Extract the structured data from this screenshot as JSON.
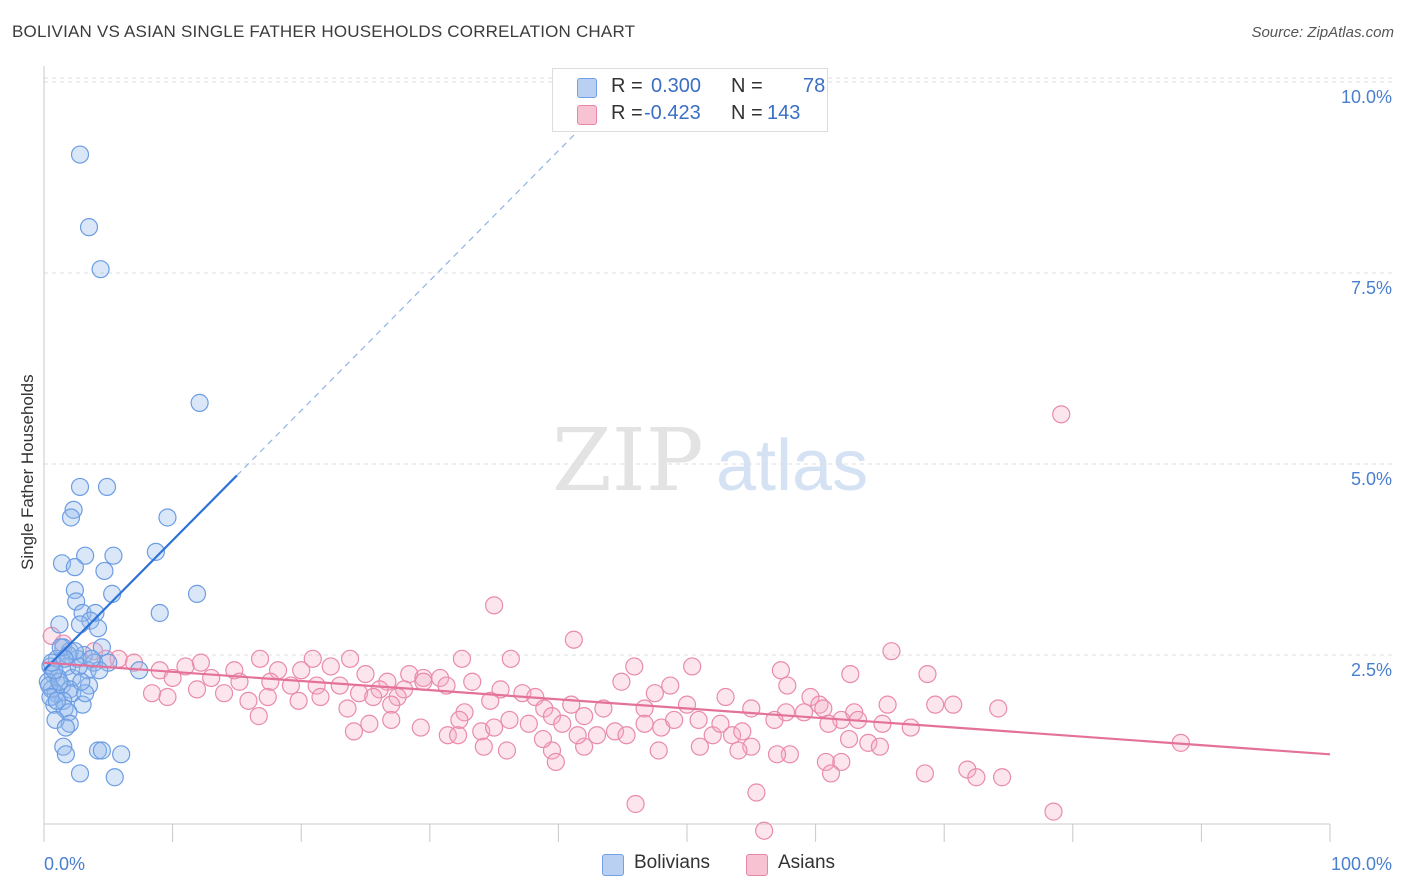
{
  "title": "BOLIVIAN VS ASIAN SINGLE FATHER HOUSEHOLDS CORRELATION CHART",
  "source": "Source: ZipAtlas.com",
  "watermark": {
    "zip": "ZIP",
    "atlas": "atlas"
  },
  "legend": {
    "r_label": "R =",
    "n_label": "N =",
    "items": [
      {
        "name": "Bolivians",
        "r": "0.300",
        "n": "78",
        "color": "#6fa0e8",
        "fill": "#b9d0f2"
      },
      {
        "name": "Asians",
        "r": "-0.423",
        "n": "143",
        "color": "#e886a6",
        "fill": "#f7c3d3"
      }
    ]
  },
  "chart_data": {
    "type": "scatter",
    "title": "BOLIVIAN VS ASIAN SINGLE FATHER HOUSEHOLDS CORRELATION CHART",
    "xlabel": "",
    "ylabel": "Single Father Households",
    "xlim": [
      0,
      100
    ],
    "ylim": [
      0,
      10.5
    ],
    "x_tick_labels": [
      "0.0%",
      "100.0%"
    ],
    "y_ticks": [
      2.5,
      5.0,
      7.5,
      10.0
    ],
    "y_tick_labels": [
      "2.5%",
      "5.0%",
      "7.5%",
      "10.0%"
    ],
    "grid": true,
    "legend_position": "top-center",
    "series": [
      {
        "name": "Bolivians",
        "color": "#4a86d8",
        "trend": {
          "x0": 0.0,
          "y0": 2.3,
          "x1": 15.0,
          "y1": 4.85,
          "dashed_to_x": 42.0
        },
        "points": [
          [
            2.8,
            9.05
          ],
          [
            3.5,
            8.1
          ],
          [
            4.4,
            7.55
          ],
          [
            12.1,
            5.8
          ],
          [
            2.8,
            4.7
          ],
          [
            4.9,
            4.7
          ],
          [
            2.3,
            4.4
          ],
          [
            2.1,
            4.3
          ],
          [
            9.6,
            4.3
          ],
          [
            8.7,
            3.85
          ],
          [
            1.4,
            3.7
          ],
          [
            3.2,
            3.8
          ],
          [
            5.4,
            3.8
          ],
          [
            2.4,
            3.65
          ],
          [
            4.7,
            3.6
          ],
          [
            2.4,
            3.35
          ],
          [
            5.3,
            3.3
          ],
          [
            11.9,
            3.3
          ],
          [
            2.5,
            3.2
          ],
          [
            9.0,
            3.05
          ],
          [
            3.0,
            3.05
          ],
          [
            4.0,
            3.05
          ],
          [
            3.6,
            2.95
          ],
          [
            2.8,
            2.9
          ],
          [
            4.2,
            2.85
          ],
          [
            1.2,
            2.9
          ],
          [
            4.5,
            2.6
          ],
          [
            1.5,
            2.6
          ],
          [
            2.0,
            2.55
          ],
          [
            3.1,
            2.5
          ],
          [
            1.0,
            2.45
          ],
          [
            2.6,
            2.45
          ],
          [
            3.9,
            2.4
          ],
          [
            5.0,
            2.4
          ],
          [
            0.5,
            2.35
          ],
          [
            1.8,
            2.35
          ],
          [
            3.4,
            2.3
          ],
          [
            4.3,
            2.3
          ],
          [
            7.4,
            2.3
          ],
          [
            0.7,
            2.25
          ],
          [
            1.1,
            2.2
          ],
          [
            2.2,
            2.2
          ],
          [
            0.3,
            2.15
          ],
          [
            1.4,
            2.1
          ],
          [
            0.6,
            2.05
          ],
          [
            2.0,
            2.05
          ],
          [
            3.5,
            2.1
          ],
          [
            0.9,
            2.0
          ],
          [
            2.2,
            2.0
          ],
          [
            1.5,
            1.9
          ],
          [
            3.0,
            1.85
          ],
          [
            0.8,
            1.85
          ],
          [
            1.6,
            1.8
          ],
          [
            1.9,
            1.75
          ],
          [
            2.0,
            1.6
          ],
          [
            0.9,
            1.65
          ],
          [
            1.7,
            1.55
          ],
          [
            1.5,
            1.3
          ],
          [
            4.2,
            1.25
          ],
          [
            4.5,
            1.25
          ],
          [
            6.0,
            1.2
          ],
          [
            1.7,
            1.2
          ],
          [
            2.8,
            0.95
          ],
          [
            5.5,
            0.9
          ],
          [
            0.4,
            2.1
          ],
          [
            1.2,
            2.15
          ],
          [
            2.7,
            2.35
          ],
          [
            0.8,
            2.3
          ],
          [
            1.9,
            2.5
          ],
          [
            3.7,
            2.45
          ],
          [
            0.5,
            1.95
          ],
          [
            1.3,
            2.6
          ],
          [
            2.4,
            2.55
          ],
          [
            0.6,
            2.4
          ],
          [
            1.0,
            1.9
          ],
          [
            3.2,
            2.0
          ],
          [
            2.9,
            2.15
          ],
          [
            1.6,
            2.45
          ]
        ]
      },
      {
        "name": "Asians",
        "color": "#e0658f",
        "trend": {
          "x0": 0.0,
          "y0": 2.4,
          "x1": 100.0,
          "y1": 1.2
        },
        "points": [
          [
            79.1,
            5.65
          ],
          [
            35.0,
            3.15
          ],
          [
            0.6,
            2.75
          ],
          [
            1.5,
            2.65
          ],
          [
            41.2,
            2.7
          ],
          [
            65.9,
            2.55
          ],
          [
            5.8,
            2.45
          ],
          [
            16.8,
            2.45
          ],
          [
            20.9,
            2.45
          ],
          [
            23.8,
            2.45
          ],
          [
            32.5,
            2.45
          ],
          [
            36.3,
            2.45
          ],
          [
            45.9,
            2.35
          ],
          [
            50.4,
            2.35
          ],
          [
            3.9,
            2.55
          ],
          [
            4.8,
            2.45
          ],
          [
            7.0,
            2.4
          ],
          [
            11.0,
            2.35
          ],
          [
            12.2,
            2.4
          ],
          [
            14.8,
            2.3
          ],
          [
            18.2,
            2.3
          ],
          [
            20.0,
            2.3
          ],
          [
            22.3,
            2.35
          ],
          [
            25.0,
            2.25
          ],
          [
            26.7,
            2.15
          ],
          [
            28.4,
            2.25
          ],
          [
            29.5,
            2.2
          ],
          [
            30.8,
            2.2
          ],
          [
            28.0,
            2.05
          ],
          [
            26.1,
            2.05
          ],
          [
            62.7,
            2.25
          ],
          [
            57.3,
            2.3
          ],
          [
            68.7,
            2.25
          ],
          [
            9.0,
            2.3
          ],
          [
            10.0,
            2.2
          ],
          [
            13.0,
            2.2
          ],
          [
            15.2,
            2.15
          ],
          [
            17.6,
            2.15
          ],
          [
            19.2,
            2.1
          ],
          [
            21.2,
            2.1
          ],
          [
            23.0,
            2.1
          ],
          [
            24.5,
            2.0
          ],
          [
            27.5,
            1.95
          ],
          [
            29.5,
            2.15
          ],
          [
            31.3,
            2.1
          ],
          [
            33.3,
            2.15
          ],
          [
            35.5,
            2.05
          ],
          [
            37.2,
            2.0
          ],
          [
            44.9,
            2.15
          ],
          [
            48.7,
            2.1
          ],
          [
            47.5,
            2.0
          ],
          [
            57.8,
            2.1
          ],
          [
            59.6,
            1.95
          ],
          [
            8.4,
            2.0
          ],
          [
            11.9,
            2.05
          ],
          [
            14.0,
            2.0
          ],
          [
            15.9,
            1.9
          ],
          [
            17.4,
            1.95
          ],
          [
            19.8,
            1.9
          ],
          [
            21.5,
            1.95
          ],
          [
            23.6,
            1.8
          ],
          [
            25.6,
            1.95
          ],
          [
            27.0,
            1.85
          ],
          [
            32.7,
            1.75
          ],
          [
            34.7,
            1.9
          ],
          [
            38.2,
            1.95
          ],
          [
            38.9,
            1.8
          ],
          [
            41.0,
            1.85
          ],
          [
            43.5,
            1.8
          ],
          [
            46.7,
            1.8
          ],
          [
            50.0,
            1.85
          ],
          [
            53.0,
            1.95
          ],
          [
            55.0,
            1.8
          ],
          [
            57.7,
            1.75
          ],
          [
            60.3,
            1.85
          ],
          [
            60.6,
            1.8
          ],
          [
            62.0,
            1.65
          ],
          [
            63.0,
            1.75
          ],
          [
            65.6,
            1.85
          ],
          [
            69.3,
            1.85
          ],
          [
            70.7,
            1.85
          ],
          [
            74.2,
            1.8
          ],
          [
            16.7,
            1.7
          ],
          [
            24.1,
            1.5
          ],
          [
            25.3,
            1.6
          ],
          [
            27.0,
            1.65
          ],
          [
            29.3,
            1.55
          ],
          [
            31.4,
            1.45
          ],
          [
            32.3,
            1.65
          ],
          [
            34.0,
            1.5
          ],
          [
            36.2,
            1.65
          ],
          [
            37.7,
            1.6
          ],
          [
            39.5,
            1.7
          ],
          [
            40.3,
            1.6
          ],
          [
            42.0,
            1.7
          ],
          [
            43.0,
            1.45
          ],
          [
            44.4,
            1.5
          ],
          [
            45.3,
            1.45
          ],
          [
            46.7,
            1.6
          ],
          [
            48.0,
            1.55
          ],
          [
            49.0,
            1.65
          ],
          [
            50.9,
            1.65
          ],
          [
            52.0,
            1.45
          ],
          [
            52.6,
            1.6
          ],
          [
            53.5,
            1.45
          ],
          [
            54.3,
            1.5
          ],
          [
            56.8,
            1.65
          ],
          [
            59.1,
            1.75
          ],
          [
            61.0,
            1.6
          ],
          [
            63.3,
            1.65
          ],
          [
            65.2,
            1.6
          ],
          [
            67.4,
            1.55
          ],
          [
            62.6,
            1.4
          ],
          [
            64.1,
            1.35
          ],
          [
            65.0,
            1.3
          ],
          [
            55.0,
            1.3
          ],
          [
            54.0,
            1.25
          ],
          [
            51.0,
            1.3
          ],
          [
            58.0,
            1.2
          ],
          [
            57.0,
            1.2
          ],
          [
            60.8,
            1.1
          ],
          [
            62.0,
            1.1
          ],
          [
            47.8,
            1.25
          ],
          [
            42.0,
            1.3
          ],
          [
            39.5,
            1.25
          ],
          [
            36.0,
            1.25
          ],
          [
            34.2,
            1.3
          ],
          [
            32.2,
            1.45
          ],
          [
            35.0,
            1.55
          ],
          [
            38.8,
            1.4
          ],
          [
            41.5,
            1.45
          ],
          [
            88.4,
            1.35
          ],
          [
            61.2,
            0.95
          ],
          [
            68.5,
            0.95
          ],
          [
            71.8,
            1.0
          ],
          [
            72.5,
            0.9
          ],
          [
            74.5,
            0.9
          ],
          [
            39.8,
            1.1
          ],
          [
            55.4,
            0.7
          ],
          [
            46.0,
            0.55
          ],
          [
            78.5,
            0.45
          ],
          [
            56.0,
            0.2
          ],
          [
            9.6,
            1.95
          ]
        ]
      }
    ]
  }
}
